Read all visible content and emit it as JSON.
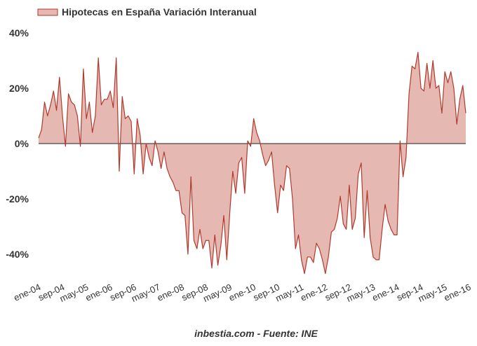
{
  "chart_data": {
    "type": "area",
    "title": "",
    "xlabel": "",
    "ylabel": "",
    "ylim": [
      -50,
      40
    ],
    "y_ticks": [
      40,
      20,
      0,
      -20,
      -40
    ],
    "y_tick_labels": [
      "40%",
      "20%",
      "0%",
      "-20%",
      "-40%"
    ],
    "x_ticks": [
      "ene-04",
      "sep-04",
      "may-05",
      "ene-06",
      "sep-06",
      "may-07",
      "ene-08",
      "sep-08",
      "may-09",
      "ene-10",
      "sep-10",
      "may-11",
      "ene-12",
      "sep-12",
      "may-13",
      "ene-14",
      "sep-14",
      "may-15",
      "ene-16"
    ],
    "x_tick_months": [
      0,
      8,
      16,
      24,
      32,
      40,
      48,
      56,
      64,
      72,
      80,
      88,
      96,
      104,
      112,
      120,
      128,
      136,
      144
    ],
    "legend_position": "top-left",
    "grid": false,
    "series": [
      {
        "name": "Hipotecas en España Variación Interanual",
        "line_color": "#b03a2e",
        "fill_color": "#e6b8b2",
        "values": [
          2,
          5,
          15,
          10,
          14,
          19,
          12,
          24,
          10,
          -1,
          18,
          15,
          14,
          10,
          -1,
          27,
          9,
          15,
          4,
          10,
          31,
          14,
          16,
          16,
          19,
          13,
          31,
          -10,
          17,
          9,
          10,
          8,
          -11,
          9,
          3,
          -11,
          0,
          -5,
          -8,
          1,
          -3,
          -9,
          -3,
          -9,
          -12,
          -14,
          -17,
          -17,
          -25,
          -26,
          -40,
          -12,
          -35,
          -38,
          -31,
          -38,
          -35,
          -35,
          -45,
          -33,
          -44,
          -37,
          -26,
          -42,
          -25,
          -10,
          -18,
          -7,
          -5,
          -18,
          1,
          -1,
          9,
          4,
          1,
          -4,
          -8,
          -6,
          -3,
          -15,
          -25,
          -15,
          -17,
          -8,
          -9,
          -20,
          -38,
          -33,
          -42,
          -47,
          -41,
          -41,
          -43,
          -36,
          -38,
          -42,
          -47,
          -41,
          -32,
          -31,
          -27,
          -19,
          -29,
          -31,
          -15,
          -31,
          -27,
          -11,
          -7,
          -34,
          -17,
          -34,
          -41,
          -42,
          -42,
          -31,
          -22,
          -28,
          -31,
          -33,
          -33,
          1,
          -12,
          -5,
          18,
          28,
          27,
          33,
          20,
          19,
          29,
          20,
          30,
          20,
          21,
          11,
          26,
          22,
          26,
          20,
          7,
          16,
          21,
          11
        ]
      }
    ],
    "source_text": "inbestia.com - Fuente: INE"
  },
  "colors": {
    "axis_zero_line": "#222222",
    "text": "#333333"
  }
}
